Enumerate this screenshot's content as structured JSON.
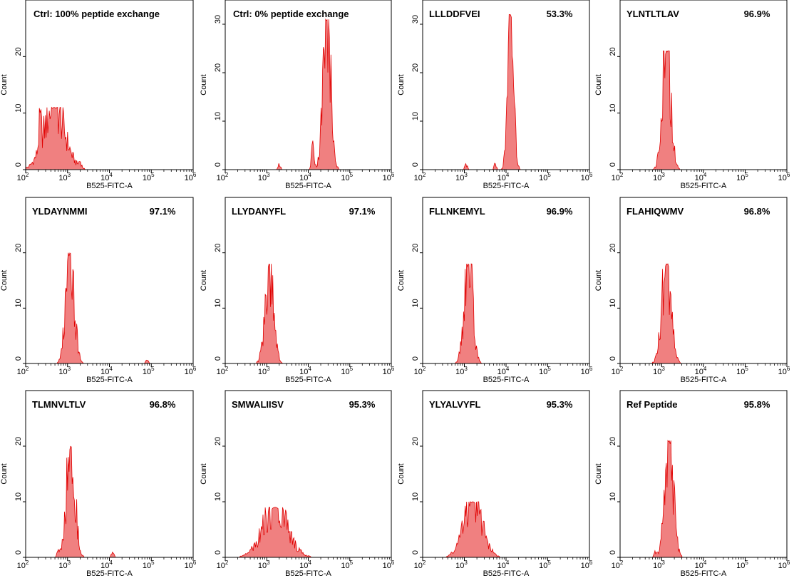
{
  "figure": {
    "xlabel": "B525-FITC-A",
    "ylabel": "Count",
    "x_ticks": [
      {
        "exp": 2,
        "base": "10",
        "sup": "2"
      },
      {
        "exp": 3,
        "base": "10",
        "sup": "3"
      },
      {
        "exp": 4,
        "base": "10",
        "sup": "4"
      },
      {
        "exp": 5,
        "base": "10",
        "sup": "5"
      },
      {
        "exp": 6,
        "base": "10",
        "sup": "6"
      }
    ],
    "fill_color": "#f08080",
    "line_color": "#e00000"
  },
  "chart_data": [
    {
      "type": "area",
      "title": "Ctrl: 100% peptide exchange",
      "value": "",
      "xscale": "log",
      "xlim": [
        100,
        1000000
      ],
      "ylim": [
        0,
        30
      ],
      "yticks": [
        0,
        10,
        20
      ],
      "peak_x": 480,
      "peak_y": 11,
      "sigma": 0.25,
      "extra": [
        [
          220,
          4
        ],
        [
          2000,
          1
        ]
      ]
    },
    {
      "type": "area",
      "title": "Ctrl: 0% peptide exchange",
      "value": "",
      "xscale": "log",
      "xlim": [
        100,
        1000000
      ],
      "ylim": [
        0,
        35
      ],
      "yticks": [
        0,
        10,
        20,
        30
      ],
      "peak_x": 28000,
      "peak_y": 31,
      "sigma": 0.09,
      "extra": [
        [
          2000,
          1
        ],
        [
          13000,
          6
        ]
      ]
    },
    {
      "type": "area",
      "title": "LLLDDFVEI",
      "value": "53.3%",
      "xscale": "log",
      "xlim": [
        100,
        1000000
      ],
      "ylim": [
        0,
        35
      ],
      "yticks": [
        0,
        10,
        20,
        30
      ],
      "peak_x": 13000,
      "peak_y": 32,
      "sigma": 0.07,
      "extra": [
        [
          1100,
          1
        ],
        [
          5500,
          1
        ]
      ]
    },
    {
      "type": "area",
      "title": "YLNTLTLAV",
      "value": "96.9%",
      "xscale": "log",
      "xlim": [
        100,
        1000000
      ],
      "ylim": [
        0,
        30
      ],
      "yticks": [
        0,
        10,
        20
      ],
      "peak_x": 1300,
      "peak_y": 21,
      "sigma": 0.1,
      "extra": []
    },
    {
      "type": "area",
      "title": "YLDAYNMMI",
      "value": "97.1%",
      "xscale": "log",
      "xlim": [
        100,
        1000000
      ],
      "ylim": [
        0,
        30
      ],
      "yticks": [
        0,
        10,
        20
      ],
      "peak_x": 1150,
      "peak_y": 20,
      "sigma": 0.1,
      "extra": [
        [
          80000,
          1
        ]
      ]
    },
    {
      "type": "area",
      "title": "LLYDANYFL",
      "value": "97.1%",
      "xscale": "log",
      "xlim": [
        100,
        1000000
      ],
      "ylim": [
        0,
        30
      ],
      "yticks": [
        0,
        10,
        20
      ],
      "peak_x": 1150,
      "peak_y": 18,
      "sigma": 0.1,
      "extra": []
    },
    {
      "type": "area",
      "title": "FLLNKEMYL",
      "value": "96.9%",
      "xscale": "log",
      "xlim": [
        100,
        1000000
      ],
      "ylim": [
        0,
        30
      ],
      "yticks": [
        0,
        10,
        20
      ],
      "peak_x": 1250,
      "peak_y": 18,
      "sigma": 0.1,
      "extra": []
    },
    {
      "type": "area",
      "title": "FLAHIQWMV",
      "value": "96.8%",
      "xscale": "log",
      "xlim": [
        100,
        1000000
      ],
      "ylim": [
        0,
        30
      ],
      "yticks": [
        0,
        10,
        20
      ],
      "peak_x": 1300,
      "peak_y": 18,
      "sigma": 0.11,
      "extra": []
    },
    {
      "type": "area",
      "title": "TLMNVLTLV",
      "value": "96.8%",
      "xscale": "log",
      "xlim": [
        100,
        1000000
      ],
      "ylim": [
        0,
        30
      ],
      "yticks": [
        0,
        10,
        20
      ],
      "peak_x": 1200,
      "peak_y": 20,
      "sigma": 0.1,
      "extra": [
        [
          600,
          1
        ],
        [
          12000,
          1
        ]
      ]
    },
    {
      "type": "area",
      "title": "SMWALIISV",
      "value": "95.3%",
      "xscale": "log",
      "xlim": [
        100,
        1000000
      ],
      "ylim": [
        0,
        30
      ],
      "yticks": [
        0,
        10,
        20
      ],
      "peak_x": 1600,
      "peak_y": 9,
      "sigma": 0.3,
      "extra": []
    },
    {
      "type": "area",
      "title": "YLYALVYFL",
      "value": "95.3%",
      "xscale": "log",
      "xlim": [
        100,
        1000000
      ],
      "ylim": [
        0,
        30
      ],
      "yticks": [
        0,
        10,
        20
      ],
      "peak_x": 1600,
      "peak_y": 10,
      "sigma": 0.22,
      "extra": []
    },
    {
      "type": "area",
      "title": "Ref Peptide",
      "value": "95.8%",
      "xscale": "log",
      "xlim": [
        100,
        1000000
      ],
      "ylim": [
        0,
        30
      ],
      "yticks": [
        0,
        10,
        20
      ],
      "peak_x": 1500,
      "peak_y": 21,
      "sigma": 0.1,
      "extra": [
        [
          700,
          1
        ]
      ]
    }
  ]
}
